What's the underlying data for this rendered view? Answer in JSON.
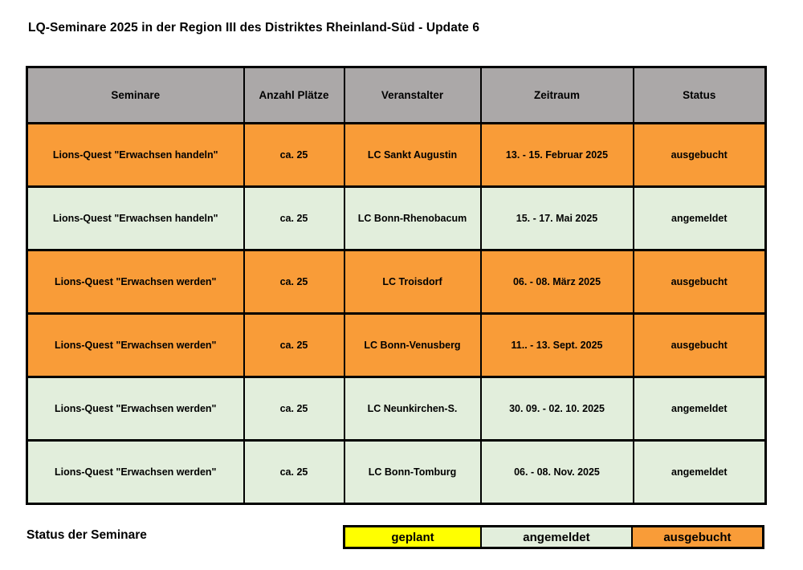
{
  "title": "LQ-Seminare 2025 in der Region III des Distriktes Rheinland-Süd - Update 6",
  "colors": {
    "header_bg": "#ABA8A8",
    "geplant": "#FFFF00",
    "angemeldet": "#E2EEDC",
    "ausgebucht": "#F99C38",
    "border": "#000000"
  },
  "table": {
    "columns": [
      "Seminare",
      "Anzahl Plätze",
      "Veranstalter",
      "Zeitraum",
      "Status"
    ],
    "rows": [
      {
        "seminar": "Lions-Quest \"Erwachsen handeln\"",
        "plaetze": "ca. 25",
        "veranstalter": "LC Sankt Augustin",
        "zeitraum": "13. - 15. Februar 2025",
        "status": "ausgebucht"
      },
      {
        "seminar": "Lions-Quest \"Erwachsen handeln\"",
        "plaetze": "ca. 25",
        "veranstalter": "LC Bonn-Rhenobacum",
        "zeitraum": "15. - 17. Mai 2025",
        "status": "angemeldet"
      },
      {
        "seminar": "Lions-Quest \"Erwachsen werden\"",
        "plaetze": "ca. 25",
        "veranstalter": "LC Troisdorf",
        "zeitraum": "06. - 08. März 2025",
        "status": "ausgebucht"
      },
      {
        "seminar": "Lions-Quest \"Erwachsen werden\"",
        "plaetze": "ca. 25",
        "veranstalter": "LC Bonn-Venusberg",
        "zeitraum": "11.. - 13. Sept. 2025",
        "status": "ausgebucht"
      },
      {
        "seminar": "Lions-Quest \"Erwachsen werden\"",
        "plaetze": "ca. 25",
        "veranstalter": "LC Neunkirchen-S.",
        "zeitraum": "30. 09. - 02. 10. 2025",
        "status": "angemeldet"
      },
      {
        "seminar": "Lions-Quest \"Erwachsen werden\"",
        "plaetze": "ca. 25",
        "veranstalter": "LC Bonn-Tomburg",
        "zeitraum": "06. - 08. Nov. 2025",
        "status": "angemeldet"
      }
    ]
  },
  "legend": {
    "label": "Status der Seminare",
    "items": [
      {
        "label": "geplant",
        "color": "#FFFF00"
      },
      {
        "label": "angemeldet",
        "color": "#E2EEDC"
      },
      {
        "label": "ausgebucht",
        "color": "#F99C38"
      }
    ]
  }
}
